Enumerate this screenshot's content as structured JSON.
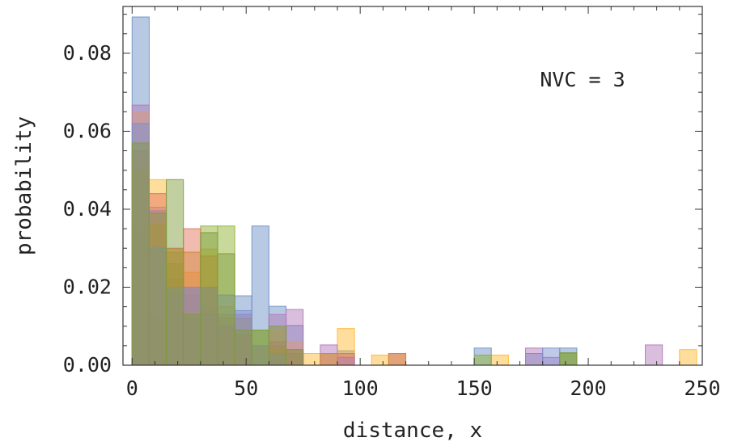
{
  "chart_data": {
    "type": "bar",
    "subtype": "overlaid-histogram",
    "xlabel": "distance, x",
    "ylabel": "probability",
    "annotation": "NVC = 3",
    "xlim": [
      -4,
      250
    ],
    "ylim": [
      0,
      0.092
    ],
    "xticks": [
      0,
      50,
      100,
      150,
      200,
      250
    ],
    "xtick_labels": [
      "0",
      "50",
      "100",
      "150",
      "200",
      "250"
    ],
    "yticks": [
      0,
      0.02,
      0.04,
      0.06,
      0.08
    ],
    "ytick_labels": [
      "0.00",
      "0.02",
      "0.04",
      "0.06",
      "0.08"
    ],
    "bin_width": 7.5,
    "grid": false,
    "legend": "none",
    "series": [
      {
        "color": "#6a8fc4",
        "bins": [
          [
            0,
            0.0893
          ],
          [
            7.5,
            0.0405
          ],
          [
            15,
            0.022
          ],
          [
            22.5,
            0.012
          ],
          [
            30,
            0.015
          ],
          [
            37.5,
            0.013
          ],
          [
            45,
            0.0178
          ],
          [
            52.5,
            0.0357
          ],
          [
            60,
            0.0151
          ],
          [
            67.5,
            0.0102
          ],
          [
            90,
            0.0037
          ],
          [
            150,
            0.0044
          ],
          [
            172.5,
            0.003
          ],
          [
            187.5,
            0.0044
          ]
        ]
      },
      {
        "color": "#ffb833",
        "bins": [
          [
            0,
            0.065
          ],
          [
            7.5,
            0.0476
          ],
          [
            15,
            0.0298
          ],
          [
            22.5,
            0.0238
          ],
          [
            30,
            0.0298
          ],
          [
            37.5,
            0.015
          ],
          [
            45,
            0.012
          ],
          [
            60,
            0.009
          ],
          [
            67.5,
            0.006
          ],
          [
            75,
            0.003
          ],
          [
            82.5,
            0.003
          ],
          [
            90,
            0.0094
          ],
          [
            105,
            0.0026
          ],
          [
            157.5,
            0.0026
          ],
          [
            240,
            0.004
          ]
        ]
      },
      {
        "color": "#8fb02f",
        "bins": [
          [
            0,
            0.0357
          ],
          [
            7.5,
            0.012
          ],
          [
            15,
            0.026
          ],
          [
            22.5,
            0.018
          ],
          [
            30,
            0.0357
          ],
          [
            37.5,
            0.0357
          ],
          [
            45,
            0.012
          ],
          [
            52.5,
            0.009
          ],
          [
            60,
            0.005
          ],
          [
            67.5,
            0.003
          ],
          [
            150,
            0.0026
          ],
          [
            187.5,
            0.003
          ]
        ]
      },
      {
        "color": "#e2705a",
        "bins": [
          [
            0,
            0.055
          ],
          [
            7.5,
            0.044
          ],
          [
            15,
            0.03
          ],
          [
            22.5,
            0.035
          ],
          [
            30,
            0.02
          ],
          [
            37.5,
            0.01
          ],
          [
            45,
            0.008
          ],
          [
            60,
            0.006
          ],
          [
            67.5,
            0.004
          ],
          [
            90,
            0.003
          ],
          [
            112.5,
            0.003
          ]
        ]
      },
      {
        "color": "#b078b8",
        "bins": [
          [
            0,
            0.0667
          ],
          [
            7.5,
            0.0396
          ],
          [
            15,
            0.018
          ],
          [
            22.5,
            0.02
          ],
          [
            30,
            0.013
          ],
          [
            37.5,
            0.01
          ],
          [
            45,
            0.013
          ],
          [
            60,
            0.013
          ],
          [
            67.5,
            0.0143
          ],
          [
            82.5,
            0.0052
          ],
          [
            90,
            0.002
          ],
          [
            172.5,
            0.0044
          ],
          [
            180,
            0.002
          ],
          [
            225,
            0.0052
          ]
        ]
      },
      {
        "color": "#d08a3a",
        "bins": [
          [
            0,
            0.05
          ],
          [
            7.5,
            0.036
          ],
          [
            15,
            0.029
          ],
          [
            22.5,
            0.029
          ],
          [
            30,
            0.028
          ],
          [
            37.5,
            0.012
          ],
          [
            45,
            0.008
          ],
          [
            52.5,
            0.005
          ],
          [
            60,
            0.004
          ],
          [
            82.5,
            0.003
          ],
          [
            112.5,
            0.003
          ]
        ]
      },
      {
        "color": "#7a8fcf",
        "bins": [
          [
            0,
            0.062
          ],
          [
            7.5,
            0.03
          ],
          [
            15,
            0.02
          ],
          [
            22.5,
            0.02
          ],
          [
            30,
            0.02
          ],
          [
            37.5,
            0.018
          ],
          [
            45,
            0.014
          ],
          [
            52.5,
            0.005
          ],
          [
            60,
            0.003
          ],
          [
            180,
            0.0044
          ]
        ]
      },
      {
        "color": "#7e9a3a",
        "bins": [
          [
            0,
            0.057
          ],
          [
            7.5,
            0.039
          ],
          [
            15,
            0.0476
          ],
          [
            22.5,
            0.013
          ],
          [
            30,
            0.034
          ],
          [
            37.5,
            0.0286
          ],
          [
            45,
            0.009
          ],
          [
            52.5,
            0.009
          ],
          [
            60,
            0.01
          ],
          [
            67.5,
            0.004
          ],
          [
            187.5,
            0.0032
          ]
        ]
      }
    ]
  }
}
